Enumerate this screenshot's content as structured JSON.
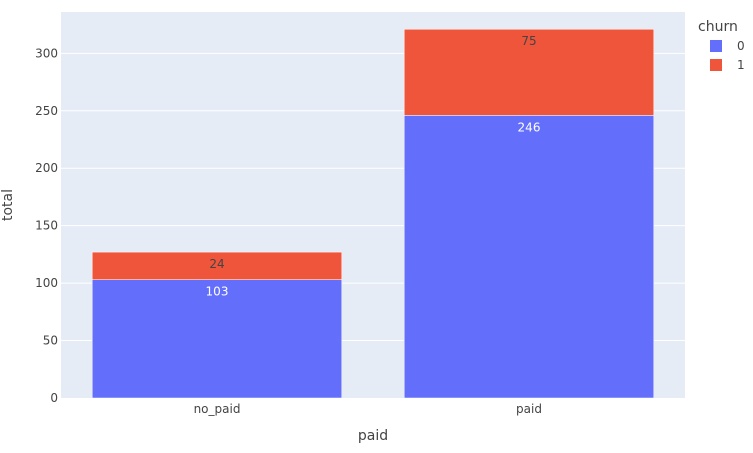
{
  "chart_data": {
    "type": "bar",
    "barmode": "stack",
    "categories": [
      "no_paid",
      "paid"
    ],
    "series": [
      {
        "name": "0",
        "values": [
          103,
          246
        ],
        "color": "#636efa",
        "label_color": "#ffffff"
      },
      {
        "name": "1",
        "values": [
          24,
          75
        ],
        "color": "#ef553b",
        "label_color": "#444444"
      }
    ],
    "xlabel": "paid",
    "ylabel": "total",
    "ylim": [
      0,
      336
    ],
    "yticks": [
      0,
      50,
      100,
      150,
      200,
      250,
      300
    ],
    "legend_title": "churn",
    "legend_position": "top-right",
    "grid": true,
    "plot_bgcolor": "#e5ecf6",
    "grid_color": "#ffffff"
  }
}
